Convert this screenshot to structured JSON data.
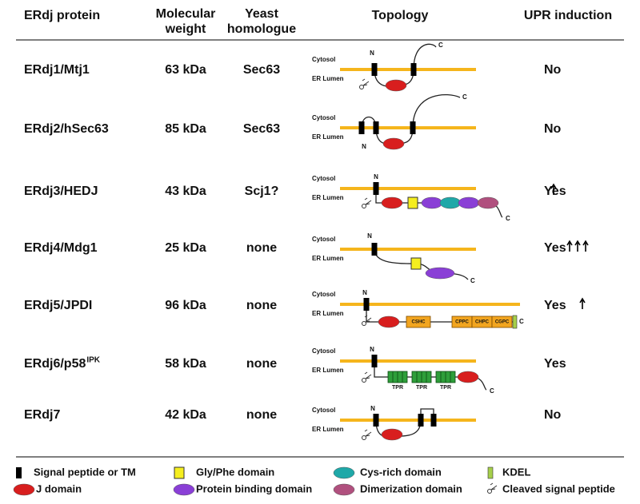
{
  "header": [
    [
      "ERdj protein"
    ],
    [
      "Molecular",
      "weight"
    ],
    [
      "Yeast",
      "homologue"
    ],
    [
      "Topology"
    ],
    [
      "UPR induction"
    ]
  ],
  "rows": [
    {
      "protein": "ERdj1/Mtj1",
      "weight": "63 kDa",
      "homologue": "Sec63",
      "upr": "No",
      "topology": {
        "cytosol": "Cytosol",
        "lumen": "ER Lumen",
        "n": "N",
        "c": "C"
      }
    },
    {
      "protein": "ERdj2/hSec63",
      "weight": "85 kDa",
      "homologue": "Sec63",
      "upr": "No",
      "topology": {
        "cytosol": "Cytosol",
        "lumen": "ER Lumen",
        "n": "N",
        "c": "C"
      }
    },
    {
      "protein": "ERdj3/HEDJ",
      "weight": "43 kDa",
      "homologue": "Scj1?",
      "upr": "Yes",
      "topology": {
        "cytosol": "Cytosol",
        "lumen": "ER Lumen",
        "n": "N",
        "c": "C"
      }
    },
    {
      "protein": "ERdj4/Mdg1",
      "weight": "25 kDa",
      "homologue": "none",
      "upr": "Yes",
      "topology": {
        "cytosol": "Cytosol",
        "lumen": "ER Lumen",
        "n": "N",
        "c": "C"
      }
    },
    {
      "protein": "ERdj5/JPDI",
      "weight": "96 kDa",
      "homologue": "none",
      "upr": "Yes",
      "topology": {
        "cytosol": "Cytosol",
        "lumen": "ER Lumen",
        "n": "N",
        "c": "C",
        "domains": [
          "CSHC",
          "CPPC",
          "CHPC",
          "CGPC"
        ]
      }
    },
    {
      "protein": "ERdj6/p58",
      "protein_sup": "IPK",
      "weight": "58 kDa",
      "homologue": "none",
      "upr": "Yes",
      "topology": {
        "cytosol": "Cytosol",
        "lumen": "ER Lumen",
        "n": "N",
        "c": "C",
        "domains": [
          "TPR",
          "TPR",
          "TPR"
        ]
      }
    },
    {
      "protein": "ERdj7",
      "weight": "42 kDa",
      "homologue": "none",
      "upr": "No",
      "topology": {
        "cytosol": "Cytosol",
        "lumen": "ER Lumen",
        "n": "N"
      }
    }
  ],
  "legend": [
    "Signal peptide or TM",
    "Gly/Phe domain",
    "Cys-rich domain",
    "KDEL",
    "J domain",
    "Protein binding domain",
    "Dimerization domain",
    "Cleaved signal peptide"
  ]
}
